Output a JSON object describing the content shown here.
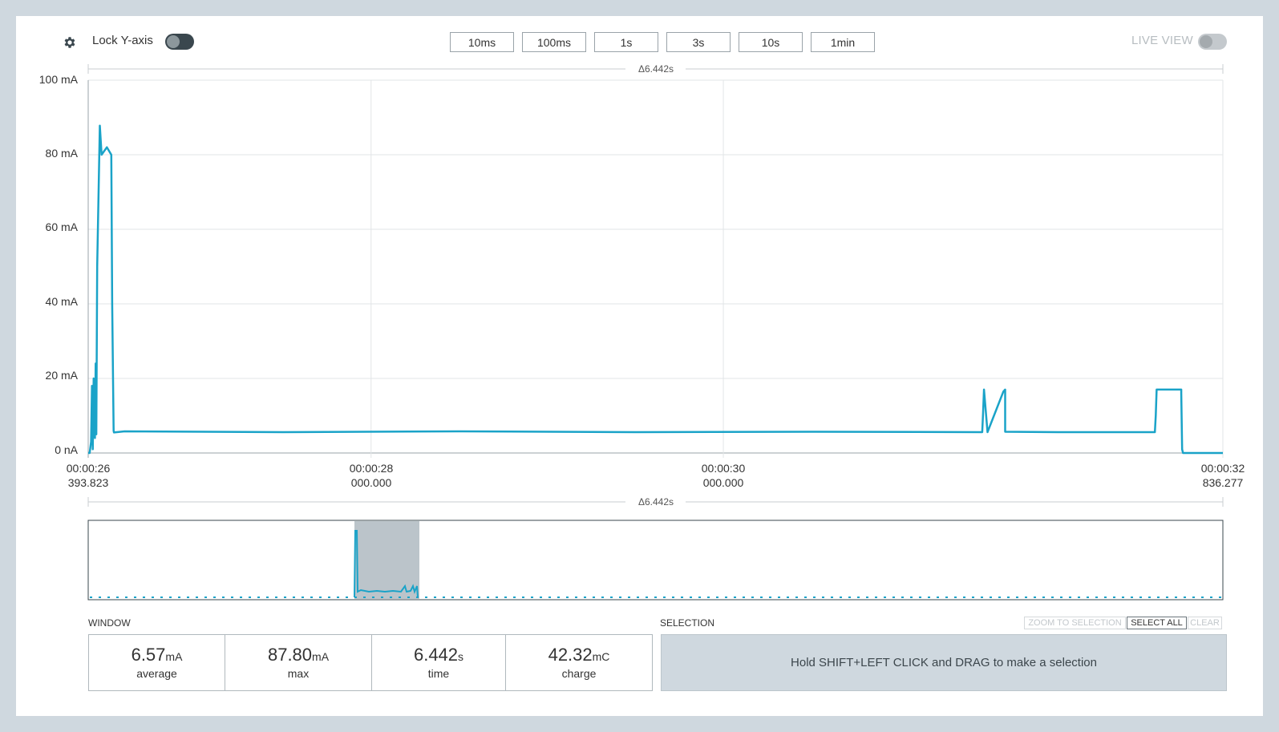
{
  "toolbar": {
    "lock_label": "Lock Y-axis",
    "lock_on": false,
    "zoom_buttons": [
      "10ms",
      "100ms",
      "1s",
      "3s",
      "10s",
      "1min"
    ],
    "live_label": "LIVE VIEW",
    "live_on": false
  },
  "chart": {
    "delta_label": "Δ6.442s",
    "y_ticks": [
      "100 mA",
      "80 mA",
      "60 mA",
      "40 mA",
      "20 mA",
      "0 nA"
    ],
    "x_ticks": [
      {
        "time": "00:00:26",
        "frac": "393.823"
      },
      {
        "time": "00:00:28",
        "frac": "000.000"
      },
      {
        "time": "00:00:30",
        "frac": "000.000"
      },
      {
        "time": "00:00:32",
        "frac": "836.277"
      }
    ],
    "line_color": "#1aa3c8"
  },
  "chart_data": {
    "type": "line",
    "title": "",
    "xlabel": "",
    "ylabel": "",
    "ylim": [
      0,
      100
    ],
    "xlim": [
      26.393823,
      32.836277
    ],
    "y_unit": "mA",
    "grid": true,
    "series": [
      {
        "x": [
          26.393823,
          26.402,
          26.41,
          26.415,
          26.42,
          26.425,
          26.432,
          26.436,
          26.44,
          26.445,
          26.46,
          26.47,
          26.5,
          26.525,
          26.53,
          26.538,
          26.54,
          26.6,
          27.5,
          28.5,
          29.5,
          30.5,
          31.5,
          31.47,
          31.475,
          31.48,
          31.6,
          31.59,
          31.6,
          31.6,
          31.9,
          32.45,
          32.455,
          32.46,
          32.6,
          32.6,
          32.605,
          32.61,
          32.836277
        ],
        "y": [
          0,
          0,
          3,
          18,
          1,
          20,
          4,
          24,
          5,
          50,
          87.8,
          80,
          82,
          80,
          40,
          6,
          5.5,
          5.8,
          5.6,
          5.8,
          5.6,
          5.7,
          5.6,
          5.6,
          11,
          17,
          17,
          16.5,
          6,
          5.7,
          5.6,
          5.6,
          10,
          17,
          17,
          16,
          1,
          0,
          0
        ]
      }
    ]
  },
  "overview": {
    "delta_label": "Δ6.442s"
  },
  "window": {
    "label": "WINDOW",
    "stats": [
      {
        "value": "6.57",
        "unit": "mA",
        "label": "average"
      },
      {
        "value": "87.80",
        "unit": "mA",
        "label": "max"
      },
      {
        "value": "6.442",
        "unit": "s",
        "label": "time"
      },
      {
        "value": "42.32",
        "unit": "mC",
        "label": "charge"
      }
    ]
  },
  "selection": {
    "label": "SELECTION",
    "zoom_label": "ZOOM TO SELECTION",
    "select_all_label": "SELECT ALL",
    "clear_label": "CLEAR",
    "hint": "Hold SHIFT+LEFT CLICK and DRAG to make a selection"
  }
}
